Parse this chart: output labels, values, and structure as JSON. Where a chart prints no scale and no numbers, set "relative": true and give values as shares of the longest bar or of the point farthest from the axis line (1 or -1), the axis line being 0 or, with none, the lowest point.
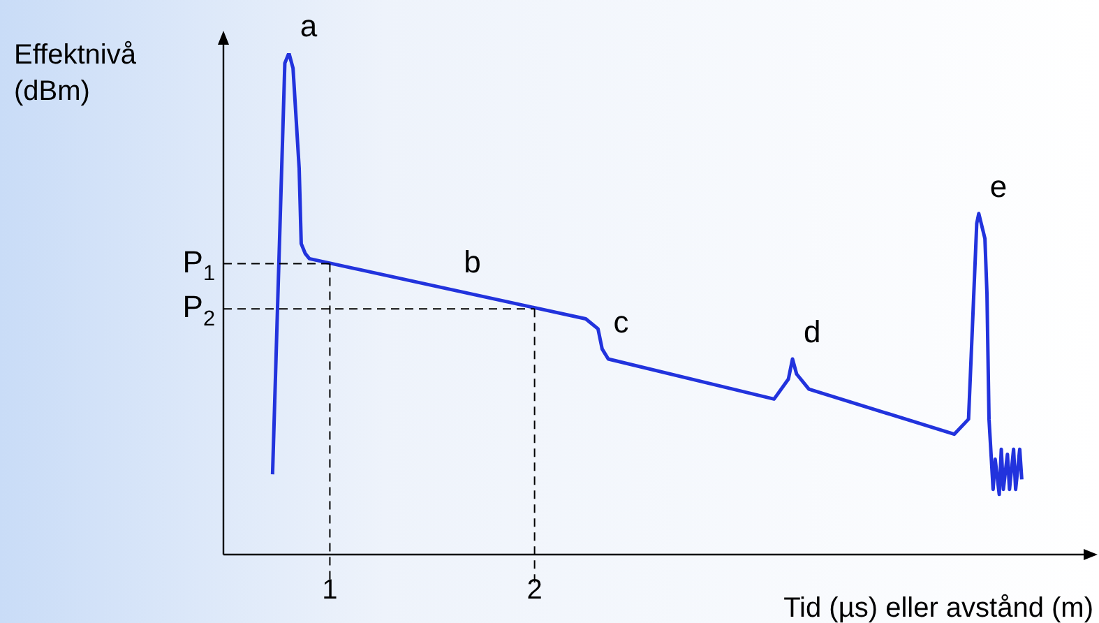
{
  "chart_data": {
    "type": "line",
    "relative": true,
    "xlabel": "Tid (µs) eller avstånd (m)",
    "ylabel": "Effektnivå\n(dBm)",
    "xlim": [
      0.48,
      4.73
    ],
    "xticks": [
      1,
      2
    ],
    "grid": false,
    "legend": false,
    "marker": "none",
    "line_style": "solid",
    "series": [
      {
        "color": "#2233dd",
        "x": [
          0.72,
          0.78,
          0.8,
          0.82,
          0.85,
          0.86,
          0.88,
          0.9,
          2.25,
          2.31,
          2.33,
          2.36,
          3.17,
          3.24,
          3.26,
          3.28,
          3.34,
          4.05,
          4.12,
          4.16,
          4.17,
          4.2,
          4.21,
          4.22,
          4.24,
          4.25,
          4.27,
          4.28,
          4.29,
          4.31,
          4.32,
          4.34,
          4.35,
          4.37,
          4.38
        ],
        "values": [
          0.16,
          0.98,
          1,
          0.97,
          0.77,
          0.62,
          0.6,
          0.59,
          0.47,
          0.45,
          0.41,
          0.39,
          0.31,
          0.35,
          0.39,
          0.36,
          0.33,
          0.24,
          0.27,
          0.66,
          0.68,
          0.63,
          0.52,
          0.27,
          0.13,
          0.19,
          0.12,
          0.21,
          0.13,
          0.2,
          0.13,
          0.21,
          0.13,
          0.21,
          0.15
        ]
      }
    ],
    "ref_lines": [
      {
        "axis": "y",
        "value": 0.58,
        "label": "P$_{1}$",
        "line_style": "dashed",
        "color": "#000000"
      },
      {
        "axis": "y",
        "value": 0.49,
        "label": "P$_{2}$",
        "line_style": "dashed",
        "color": "#000000"
      },
      {
        "axis": "x",
        "value": 1,
        "line_style": "dashed",
        "color": "#000000"
      },
      {
        "axis": "x",
        "value": 2,
        "line_style": "dashed",
        "color": "#000000"
      }
    ],
    "annotations": [
      {
        "text": "a",
        "x": 0.8,
        "y": 1
      },
      {
        "text": "b",
        "x": 1.6,
        "y": 0.53
      },
      {
        "text": "c",
        "x": 2.33,
        "y": 0.41
      },
      {
        "text": "d",
        "x": 3.26,
        "y": 0.39
      },
      {
        "text": "e",
        "x": 4.17,
        "y": 0.68
      }
    ]
  }
}
